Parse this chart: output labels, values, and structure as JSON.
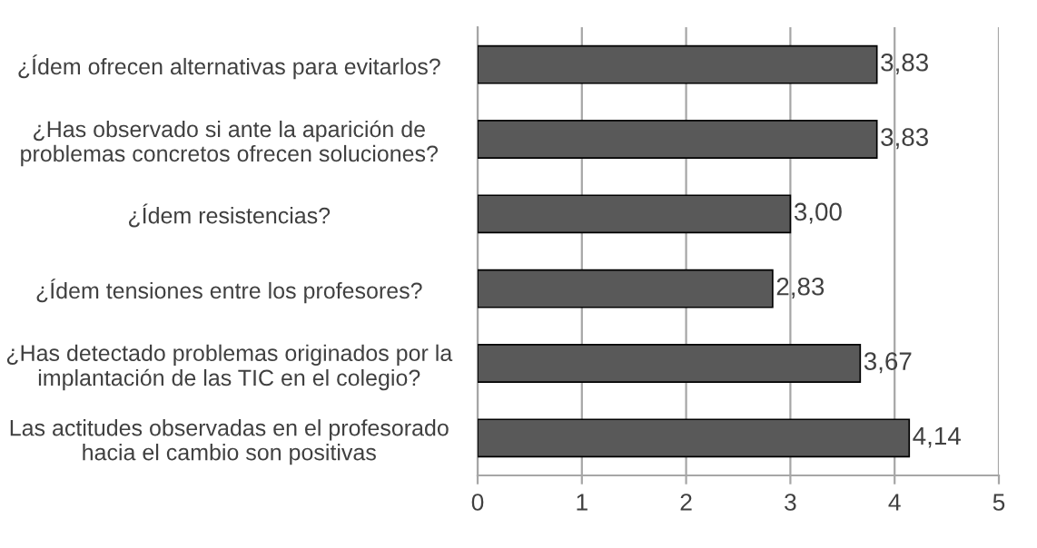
{
  "chart_data": {
    "type": "bar",
    "orientation": "horizontal",
    "categories": [
      "¿Ídem ofrecen alternativas para evitarlos?",
      "¿Has observado si ante la aparición de\nproblemas concretos ofrecen soluciones?",
      "¿Ídem resistencias?",
      "¿Ídem tensiones entre los profesores?",
      "¿Has detectado problemas originados por la\nimplantación de las TIC en el colegio?",
      "Las actitudes observadas en el profesorado\nhacia el cambio son positivas"
    ],
    "values": [
      3.83,
      3.83,
      3.0,
      2.83,
      3.67,
      4.14
    ],
    "value_labels": [
      "3,83",
      "3,83",
      "3,00",
      "2,83",
      "3,67",
      "4,14"
    ],
    "color": "#595959",
    "xlim": [
      0,
      5
    ],
    "xticks": [
      0,
      1,
      2,
      3,
      4,
      5
    ],
    "grid": "x"
  }
}
